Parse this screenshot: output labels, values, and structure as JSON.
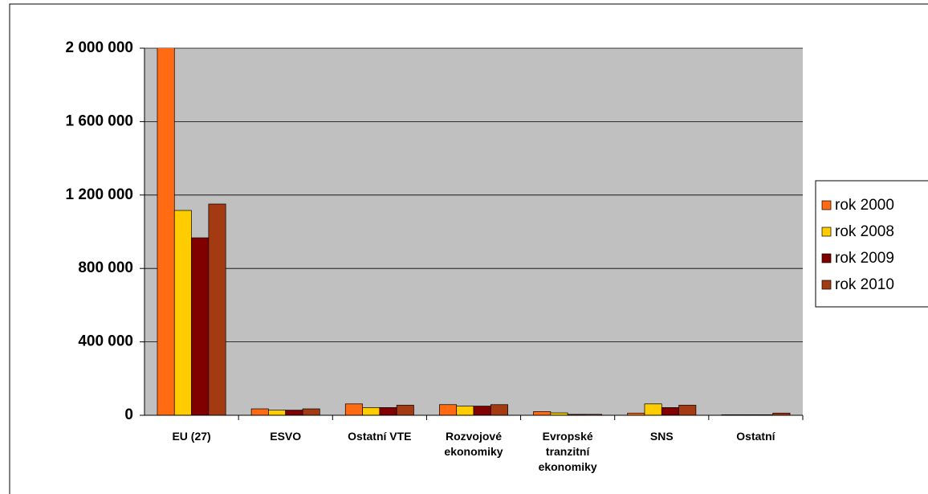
{
  "chart_data": {
    "type": "bar",
    "categories": [
      "EU (27)",
      "ESVO",
      "Ostatní VTE",
      "Rozvojové ekonomiky",
      "Evropské tranzitní ekonomiky",
      "SNS",
      "Ostatní"
    ],
    "series": [
      {
        "name": "rok 2000",
        "color": "#ff6a13",
        "values": [
          2010000,
          35000,
          62000,
          58000,
          20000,
          12000,
          3000
        ]
      },
      {
        "name": "rok 2008",
        "color": "#ffcc00",
        "values": [
          1116000,
          28000,
          42000,
          50000,
          13000,
          62000,
          3000
        ]
      },
      {
        "name": "rok 2009",
        "color": "#800000",
        "values": [
          967000,
          28000,
          42000,
          50000,
          5000,
          42000,
          3000
        ]
      },
      {
        "name": "rok 2010",
        "color": "#a33a12",
        "values": [
          1151000,
          35000,
          55000,
          58000,
          5000,
          55000,
          12000
        ]
      }
    ],
    "ylim": [
      0,
      2000000
    ],
    "yticks": [
      0,
      {
        "value": 400000,
        "label": "400 000"
      },
      {
        "value": 800000,
        "label": "800 000"
      },
      {
        "value": 1200000,
        "label": "1 200 000"
      },
      {
        "value": 1600000,
        "label": "1 600 000"
      },
      {
        "value": 2000000,
        "label": "2 000 000"
      }
    ],
    "grid": true,
    "legend": "right"
  }
}
